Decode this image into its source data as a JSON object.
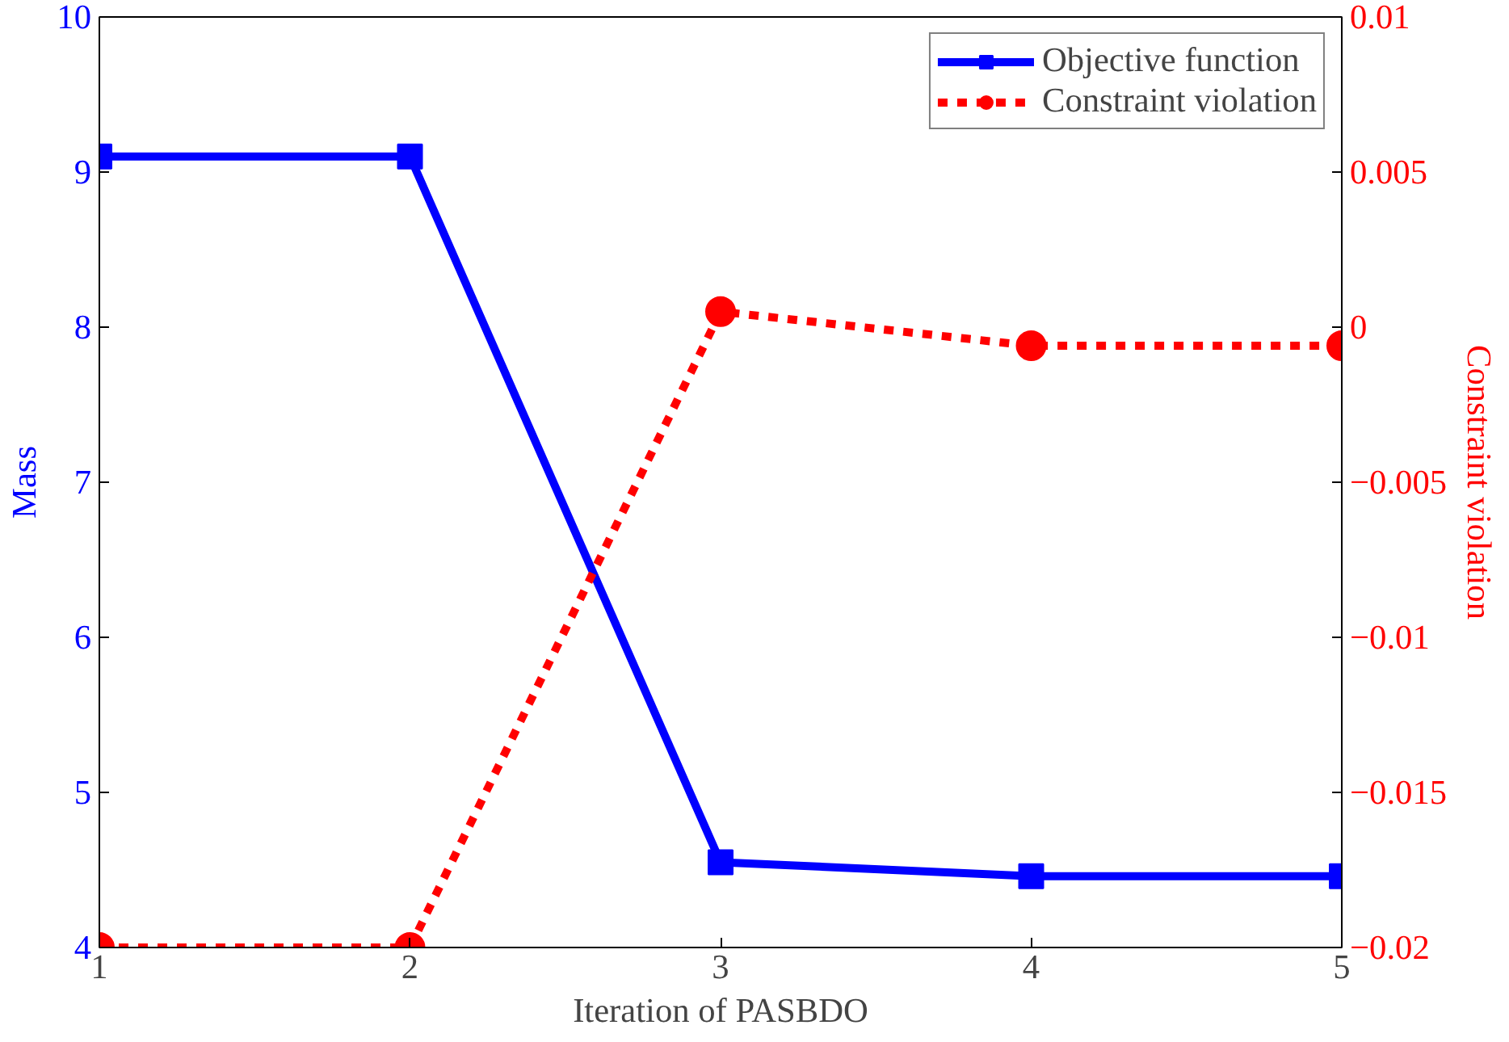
{
  "chart_data": {
    "type": "line",
    "xlabel": "Iteration of PASBDO",
    "ylabel": "Mass",
    "y2label": "Constraint violation",
    "x": [
      1,
      2,
      3,
      4,
      5
    ],
    "series": [
      {
        "name": "Objective function",
        "color": "#0000ff",
        "values": [
          9.1,
          9.1,
          4.55,
          4.46,
          4.46
        ],
        "marker": "square",
        "line_style": "solid"
      },
      {
        "name": "Constraint violation",
        "color": "#ff0000",
        "values": [
          -0.02,
          -0.02,
          0.0005,
          -0.0006,
          -0.0006
        ],
        "marker": "circle",
        "line_style": "dashed",
        "axis": "y2"
      }
    ],
    "xlim": [
      1,
      5
    ],
    "xticks": [
      1,
      2,
      3,
      4,
      5
    ],
    "ylim": [
      4,
      10
    ],
    "yticks": [
      4,
      5,
      6,
      7,
      8,
      9,
      10
    ],
    "y2lim": [
      -0.02,
      0.01
    ],
    "y2ticks": [
      {
        "value": -0.02,
        "label": "−0.02"
      },
      {
        "value": -0.015,
        "label": "−0.015"
      },
      {
        "value": -0.01,
        "label": "−0.01"
      },
      {
        "value": -0.005,
        "label": "−0.005"
      },
      0,
      0.005,
      0.01
    ],
    "grid": false,
    "legend": "top right"
  }
}
